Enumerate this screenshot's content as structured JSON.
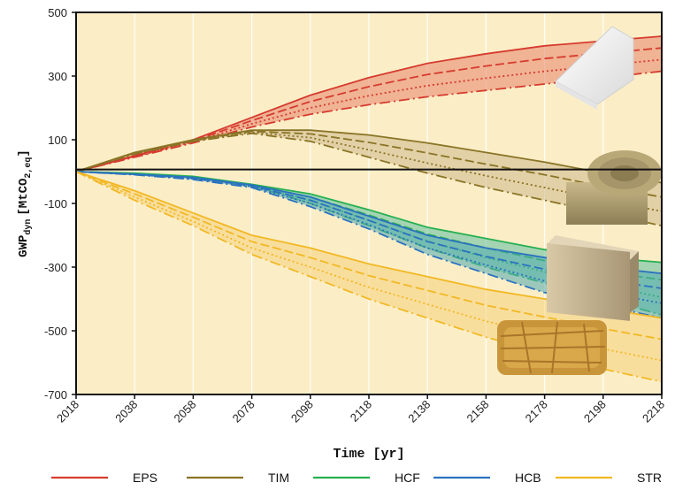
{
  "chart_data": {
    "type": "area",
    "xlabel": "Time [yr]",
    "ylabel_main": "GWP",
    "ylabel_sub": "dyn",
    "ylabel_unit_pre": "[MtCO",
    "ylabel_unit_sub": "2,eq",
    "ylabel_unit_post": "]",
    "xlim": [
      2018,
      2218
    ],
    "ylim": [
      -700,
      500
    ],
    "x_ticks": [
      "2018",
      "2038",
      "2058",
      "2078",
      "2098",
      "2118",
      "2138",
      "2158",
      "2178",
      "2198",
      "2218"
    ],
    "y_ticks": [
      "500",
      "300",
      "100",
      "-100",
      "-300",
      "-500",
      "-700"
    ],
    "grid": "vertical",
    "legend_placement": "bottom",
    "background": "#fbeec7",
    "x": [
      2018,
      2038,
      2058,
      2078,
      2098,
      2118,
      2138,
      2158,
      2178,
      2198,
      2218
    ],
    "series": [
      {
        "name": "EPS",
        "color": "#d63b2e",
        "fill": "#e8836a",
        "upper": [
          0,
          50,
          100,
          170,
          240,
          295,
          340,
          370,
          395,
          410,
          425
        ],
        "lower": [
          0,
          45,
          90,
          140,
          180,
          210,
          235,
          255,
          275,
          295,
          315
        ]
      },
      {
        "name": "TIM",
        "color": "#8a7426",
        "fill": "#cdb88a",
        "upper": [
          0,
          60,
          100,
          130,
          130,
          115,
          90,
          60,
          30,
          -5,
          -35
        ],
        "lower": [
          0,
          55,
          95,
          120,
          95,
          45,
          -5,
          -50,
          -90,
          -130,
          -170
        ]
      },
      {
        "name": "HCF",
        "color": "#27b050",
        "fill": "#5cbfa0",
        "upper": [
          0,
          -5,
          -15,
          -40,
          -70,
          -120,
          -175,
          -210,
          -245,
          -270,
          -285
        ],
        "lower": [
          0,
          -8,
          -20,
          -45,
          -100,
          -170,
          -240,
          -300,
          -350,
          -400,
          -450
        ]
      },
      {
        "name": "HCB",
        "color": "#2b72c0",
        "fill": "#4ea9b0",
        "upper": [
          0,
          -8,
          -18,
          -42,
          -80,
          -140,
          -200,
          -240,
          -270,
          -300,
          -320
        ],
        "lower": [
          0,
          -10,
          -25,
          -50,
          -110,
          -180,
          -260,
          -320,
          -380,
          -420,
          -460
        ]
      },
      {
        "name": "STR",
        "color": "#f2b824",
        "fill": "#f6d27a",
        "upper": [
          0,
          -60,
          -130,
          -200,
          -240,
          -290,
          -330,
          -370,
          -400,
          -430,
          -460
        ],
        "lower": [
          0,
          -90,
          -170,
          -260,
          -330,
          -400,
          -460,
          -520,
          -570,
          -620,
          -660
        ]
      }
    ]
  }
}
